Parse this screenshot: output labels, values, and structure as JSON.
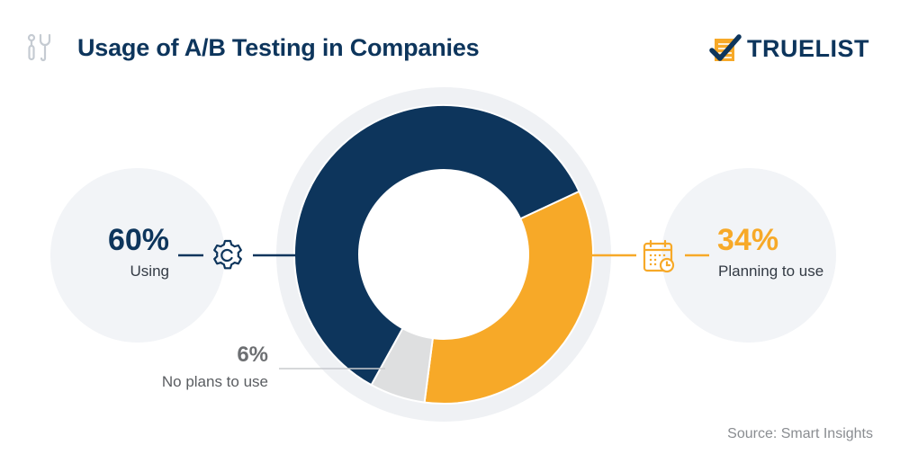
{
  "header": {
    "title": "Usage of A/B Testing in Companies",
    "icon": "tools-icon",
    "logo_text": "TRUELIST",
    "logo_icon": "checklist-icon"
  },
  "colors": {
    "navy": "#0d355c",
    "orange": "#f7a928",
    "gray_segment": "#dedfe0",
    "bubble_bg": "#f2f4f7",
    "ring_bg": "#eff1f4"
  },
  "stats": {
    "using": {
      "value": "60%",
      "label": "Using",
      "icon": "gear-icon"
    },
    "planning": {
      "value": "34%",
      "label": "Planning to use",
      "icon": "calendar-clock-icon"
    },
    "no_plans": {
      "value": "6%",
      "label": "No plans to use"
    }
  },
  "source": "Source: Smart Insights",
  "chart_data": {
    "type": "pie",
    "subtype": "donut",
    "title": "Usage of A/B Testing in Companies",
    "categories": [
      "Using",
      "Planning to use",
      "No plans to use"
    ],
    "values": [
      60,
      34,
      6
    ],
    "unit": "%",
    "colors": [
      "#0d355c",
      "#f7a928",
      "#dedfe0"
    ],
    "start_angle_deg": 65,
    "direction": "clockwise",
    "order_from_start": [
      "Planning to use",
      "No plans to use",
      "Using"
    ],
    "legend": "none (callout labels)",
    "source": "Smart Insights"
  }
}
